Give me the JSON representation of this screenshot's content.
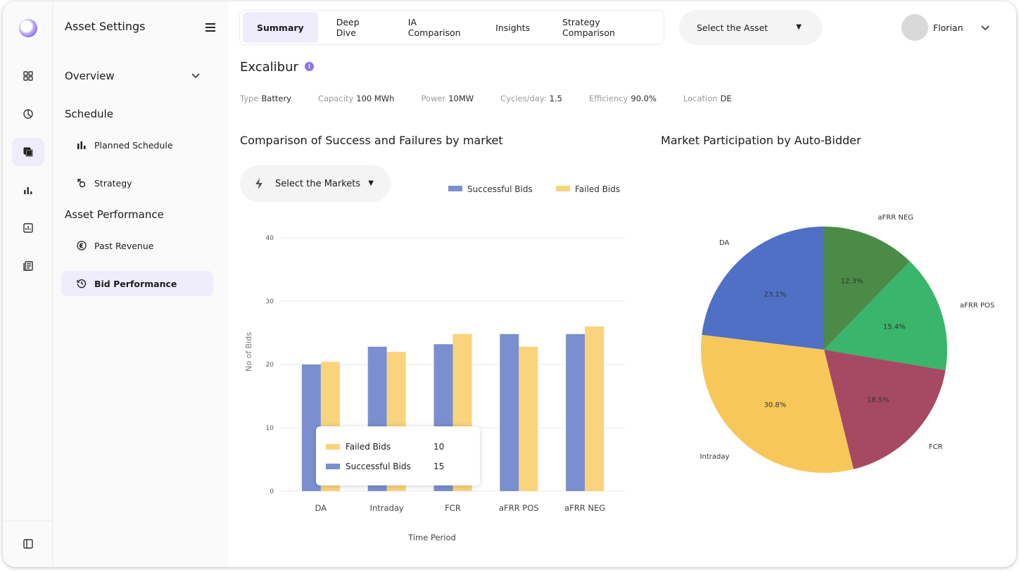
{
  "app": {
    "sidebar_title": "Asset Settings"
  },
  "rail": {
    "icons": [
      "dashboard-icon",
      "analytics-icon",
      "layers-icon",
      "bar-chart-icon",
      "report-icon",
      "documents-icon",
      "sidebar-toggle-icon"
    ],
    "active_index": 2
  },
  "sidebar": {
    "overview": "Overview",
    "schedule": "Schedule",
    "planned_schedule": "Planned Schedule",
    "strategy": "Strategy",
    "asset_performance": "Asset Performance",
    "past_revenue": "Past Revenue",
    "bid_performance": "Bid Performance"
  },
  "tabs": [
    {
      "label": "Summary",
      "active": true
    },
    {
      "label": "Deep Dive",
      "active": false
    },
    {
      "label": "IA Comparison",
      "active": false
    },
    {
      "label": "Insights",
      "active": false
    },
    {
      "label": "Strategy Comparison",
      "active": false
    }
  ],
  "asset_select": {
    "label": "Select the Asset"
  },
  "user": {
    "name": "Florian"
  },
  "asset": {
    "name": "Excalibur",
    "info_badge": "i",
    "specs": [
      {
        "key": "Type",
        "value": "Battery"
      },
      {
        "key": "Capacity",
        "value": "100 MWh"
      },
      {
        "key": "Power",
        "value": "10MW"
      },
      {
        "key": "Cycles/day:",
        "value": "1.5"
      },
      {
        "key": "Efficiency",
        "value": "90.0%"
      },
      {
        "key": "Location",
        "value": "DE"
      }
    ]
  },
  "market_select": {
    "label": "Select the Markets"
  },
  "tooltip": {
    "rows": [
      {
        "label": "Failed Bids",
        "value": "10"
      },
      {
        "label": "Successful Bids",
        "value": "15"
      }
    ]
  },
  "colors": {
    "successful": "#7b8fd0",
    "failed": "#fad47c",
    "accent": "#8c73e8"
  },
  "chart_data": [
    {
      "type": "bar",
      "title": "Comparison of Success and Failures by market",
      "xlabel": "Time Period",
      "ylabel": "No of Bids",
      "categories": [
        "DA",
        "Intraday",
        "FCR",
        "aFRR POS",
        "aFRR NEG"
      ],
      "series": [
        {
          "name": "Successful Bids",
          "values": [
            20,
            22.8,
            23.2,
            24.8,
            24.8
          ]
        },
        {
          "name": "Failed Bids",
          "values": [
            20.4,
            22,
            24.8,
            22.8,
            26
          ]
        }
      ],
      "ylim": [
        0,
        40
      ],
      "yticks": [
        0,
        10,
        20,
        30,
        40
      ],
      "grid": true,
      "legend": "top"
    },
    {
      "type": "pie",
      "title": "Market Participation by Auto-Bidder",
      "slices": [
        {
          "label": "aFRR NEG",
          "value": 12.3,
          "display": "12.3%",
          "color": "#4b8b47"
        },
        {
          "label": "aFRR POS",
          "value": 15.4,
          "display": "15.4%",
          "color": "#3ab56c"
        },
        {
          "label": "FCR",
          "value": 18.5,
          "display": "18.5%",
          "color": "#a54a62"
        },
        {
          "label": "Intraday",
          "value": 30.8,
          "display": "30.8%",
          "color": "#f7c859"
        },
        {
          "label": "DA",
          "value": 23.1,
          "display": "23.1%",
          "color": "#5070c5"
        }
      ]
    }
  ]
}
